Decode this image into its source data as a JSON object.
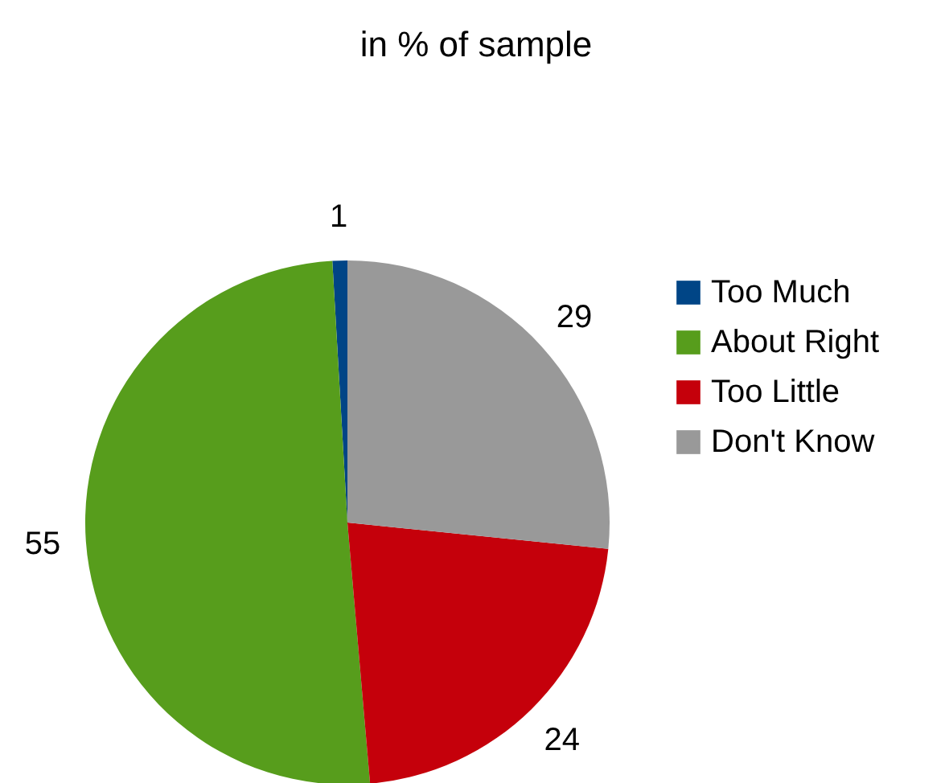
{
  "chart_data": {
    "type": "pie",
    "title": "in % of sample",
    "categories": [
      "Too Much",
      "About Right",
      "Too Little",
      "Don't Know"
    ],
    "values": [
      1,
      55,
      24,
      29
    ],
    "colors": [
      "#004586",
      "#579d1c",
      "#c5000b",
      "#999999"
    ],
    "data_labels": true,
    "legend": "right"
  }
}
